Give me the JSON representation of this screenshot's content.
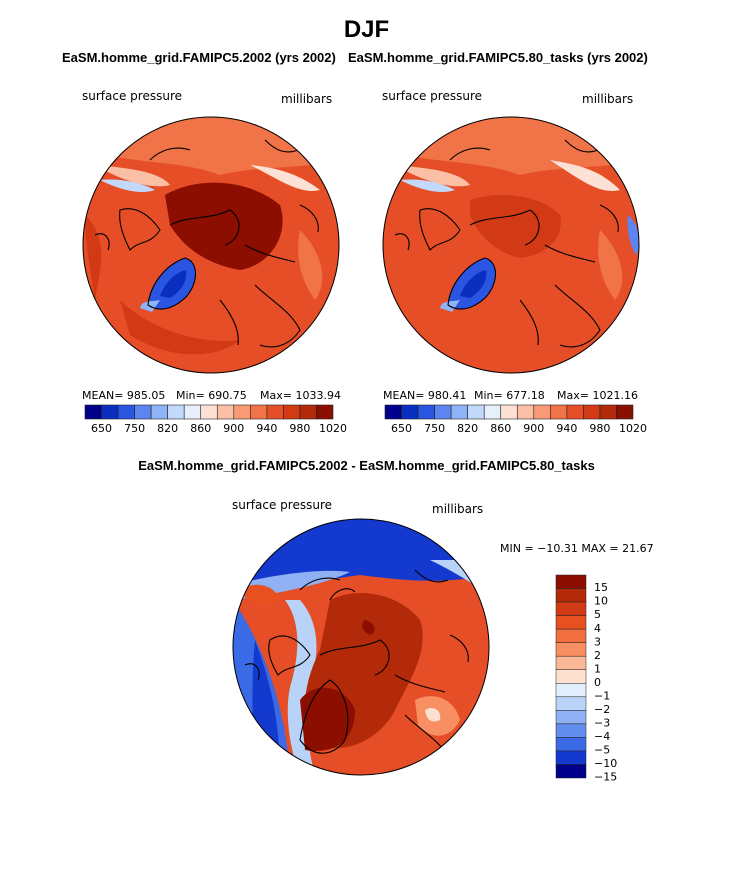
{
  "chart_data": [
    {
      "type": "heatmap",
      "title": "EaSM.homme_grid.FAMIPC5.2002 (yrs 2002)",
      "variable": "surface pressure",
      "units": "millibars",
      "stats": {
        "mean": "MEAN= 985.05",
        "min": "Min= 690.75",
        "max": "Max= 1033.94"
      },
      "levels": [
        "650",
        "750",
        "820",
        "860",
        "900",
        "940",
        "980",
        "1020"
      ]
    },
    {
      "type": "heatmap",
      "title": "EaSM.homme_grid.FAMIPC5.80_tasks (yrs 2002)",
      "variable": "surface pressure",
      "units": "millibars",
      "stats": {
        "mean": "MEAN= 980.41",
        "min": "Min= 677.18",
        "max": "Max= 1021.16"
      },
      "levels": [
        "650",
        "750",
        "820",
        "860",
        "900",
        "940",
        "980",
        "1020"
      ]
    },
    {
      "type": "heatmap",
      "title": "EaSM.homme_grid.FAMIPC5.2002 - EaSM.homme_grid.FAMIPC5.80_tasks",
      "variable": "surface pressure",
      "units": "millibars",
      "minmax": "MIN = −10.31  MAX =   21.67",
      "levels": [
        "15",
        "10",
        "5",
        "4",
        "3",
        "2",
        "1",
        "0",
        "−1",
        "−2",
        "−3",
        "−4",
        "−5",
        "−10",
        "−15"
      ]
    }
  ],
  "figure": {
    "season": "DJF"
  },
  "colors": {
    "seq_bar": [
      "#00008b",
      "#0a2fc0",
      "#2a55e0",
      "#5d85f0",
      "#8fb3f7",
      "#c3d9fb",
      "#e6f0fd",
      "#fde1d4",
      "#fbbfa5",
      "#f79a75",
      "#f07448",
      "#e54e26",
      "#d13a14",
      "#b22a0a",
      "#8b0e00"
    ],
    "div_bar": [
      "#8b0e00",
      "#b22a0a",
      "#d13a14",
      "#e8501f",
      "#f26e3e",
      "#f78f63",
      "#fbb899",
      "#fde0d0",
      "#e2eefb",
      "#b9d2f7",
      "#8fb1f3",
      "#628ded",
      "#3a6ae6",
      "#1439cf",
      "#00008b"
    ]
  }
}
